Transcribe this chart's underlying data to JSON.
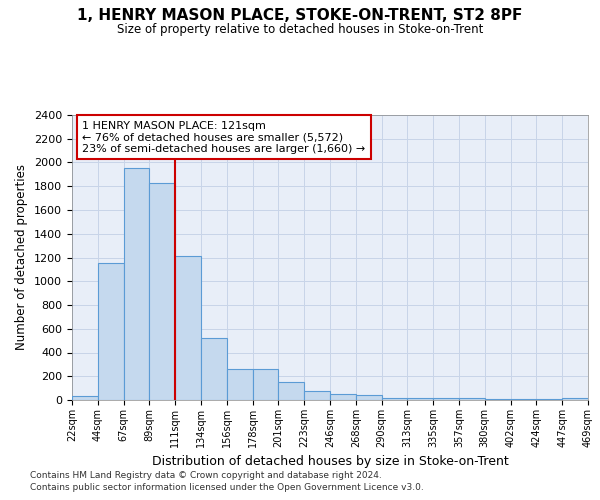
{
  "title": "1, HENRY MASON PLACE, STOKE-ON-TRENT, ST2 8PF",
  "subtitle": "Size of property relative to detached houses in Stoke-on-Trent",
  "xlabel": "Distribution of detached houses by size in Stoke-on-Trent",
  "ylabel": "Number of detached properties",
  "bar_values": [
    30,
    1150,
    1950,
    1830,
    1210,
    520,
    265,
    265,
    150,
    80,
    50,
    45,
    20,
    20,
    15,
    15,
    5,
    5,
    5,
    20
  ],
  "bin_labels": [
    "22sqm",
    "44sqm",
    "67sqm",
    "89sqm",
    "111sqm",
    "134sqm",
    "156sqm",
    "178sqm",
    "201sqm",
    "223sqm",
    "246sqm",
    "268sqm",
    "290sqm",
    "313sqm",
    "335sqm",
    "357sqm",
    "380sqm",
    "402sqm",
    "424sqm",
    "447sqm",
    "469sqm"
  ],
  "bar_color": "#c5d9ee",
  "bar_edge_color": "#5b9bd5",
  "annotation_text": "1 HENRY MASON PLACE: 121sqm\n← 76% of detached houses are smaller (5,572)\n23% of semi-detached houses are larger (1,660) →",
  "vline_x": 4,
  "vline_color": "#cc0000",
  "annotation_box_color": "#cc0000",
  "ylim": [
    0,
    2400
  ],
  "yticks": [
    0,
    200,
    400,
    600,
    800,
    1000,
    1200,
    1400,
    1600,
    1800,
    2000,
    2200,
    2400
  ],
  "grid_color": "#c8d4e8",
  "bg_color": "#e8eef8",
  "footer_line1": "Contains HM Land Registry data © Crown copyright and database right 2024.",
  "footer_line2": "Contains public sector information licensed under the Open Government Licence v3.0."
}
